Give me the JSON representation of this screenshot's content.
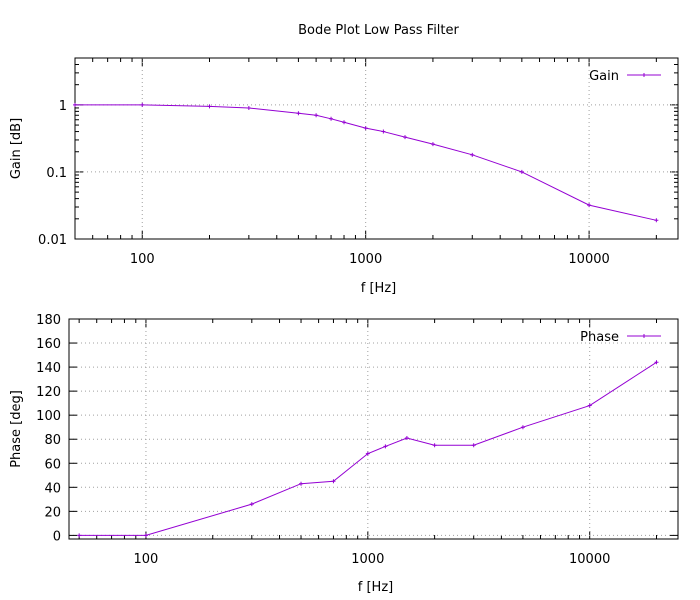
{
  "chart_data": [
    {
      "type": "line",
      "title": "Bode Plot Low Pass Filter",
      "xlabel": "f [Hz]",
      "ylabel": "Gain [dB]",
      "xscale": "log",
      "yscale": "log",
      "xlim": [
        50,
        25000
      ],
      "ylim": [
        0.01,
        5
      ],
      "grid": true,
      "legend_position": "top-right",
      "x_tick_labels": [
        "100",
        "1000",
        "10000"
      ],
      "y_tick_labels": [
        "0.01",
        "0.1",
        "1"
      ],
      "series": [
        {
          "name": "Gain",
          "color": "#9400d3",
          "x": [
            50,
            100,
            200,
            300,
            500,
            600,
            700,
            800,
            1000,
            1200,
            1500,
            2000,
            3000,
            5000,
            10000,
            20000
          ],
          "y": [
            1.0,
            1.0,
            0.95,
            0.9,
            0.75,
            0.7,
            0.62,
            0.55,
            0.45,
            0.4,
            0.33,
            0.26,
            0.18,
            0.1,
            0.032,
            0.019
          ]
        }
      ]
    },
    {
      "type": "line",
      "xlabel": "f [Hz]",
      "ylabel": "Phase [deg]",
      "xscale": "log",
      "xlim": [
        45,
        25000
      ],
      "ylim": [
        -3,
        180
      ],
      "grid": true,
      "legend_position": "top-right",
      "x_tick_labels": [
        "100",
        "1000",
        "10000"
      ],
      "y_tick_labels": [
        "0",
        "20",
        "40",
        "60",
        "80",
        "100",
        "120",
        "140",
        "160",
        "180"
      ],
      "series": [
        {
          "name": "Phase",
          "color": "#9400d3",
          "x": [
            50,
            100,
            300,
            500,
            700,
            1000,
            1200,
            1500,
            2000,
            3000,
            5000,
            10000,
            20000
          ],
          "y": [
            0,
            0,
            26,
            43,
            45,
            68,
            74,
            81,
            75,
            75,
            90,
            108,
            144
          ]
        }
      ]
    }
  ]
}
